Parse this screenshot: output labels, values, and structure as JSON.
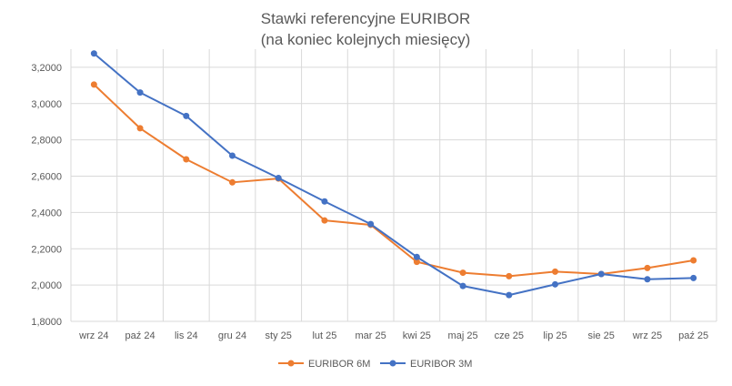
{
  "chart_data": {
    "type": "line",
    "title": [
      "Stawki referencyjne EURIBOR",
      "(na koniec kolejnych miesięcy)"
    ],
    "xlabel": "",
    "ylabel": "",
    "ylim": [
      1.8,
      3.3
    ],
    "y_ticks": [
      1.8,
      2.0,
      2.2,
      2.4,
      2.6,
      2.8,
      3.0,
      3.2
    ],
    "y_tick_labels": [
      "1,8000",
      "2,0000",
      "2,2000",
      "2,4000",
      "2,6000",
      "2,8000",
      "3,0000",
      "3,2000"
    ],
    "grid": true,
    "legend_position": "bottom",
    "categories": [
      "wrz 24",
      "paź 24",
      "lis 24",
      "gru 24",
      "sty 25",
      "lut 25",
      "mar 25",
      "kwi 25",
      "maj 25",
      "cze 25",
      "lip 25",
      "sie 25",
      "wrz 25",
      "paź 25"
    ],
    "series": [
      {
        "name": "EURIBOR 6M",
        "color": "#ed7d31",
        "values": [
          3.105,
          2.864,
          2.693,
          2.566,
          2.587,
          2.356,
          2.332,
          2.128,
          2.068,
          2.049,
          2.074,
          2.061,
          2.094,
          2.136
        ]
      },
      {
        "name": "EURIBOR 3M",
        "color": "#4472c4",
        "values": [
          3.276,
          3.061,
          2.932,
          2.713,
          2.59,
          2.461,
          2.336,
          2.155,
          1.995,
          1.945,
          2.004,
          2.061,
          2.032,
          2.039
        ]
      }
    ]
  }
}
